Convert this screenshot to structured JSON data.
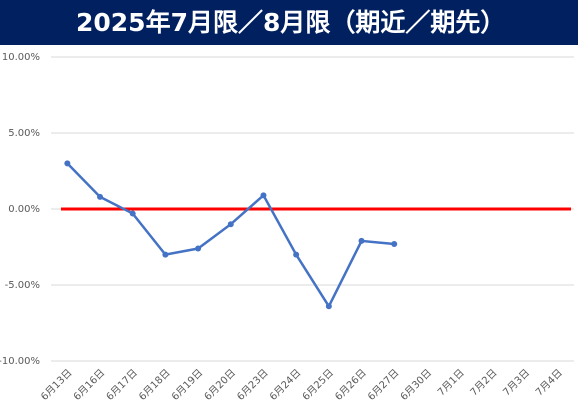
{
  "chart_data": {
    "type": "line",
    "title": "2025年7月限／8月限（期近／期先）",
    "categories": [
      "6月13日",
      "6月16日",
      "6月17日",
      "6月18日",
      "6月19日",
      "6月20日",
      "6月23日",
      "6月24日",
      "6月25日",
      "6月26日",
      "6月27日",
      "6月30日",
      "7月1日",
      "7月2日",
      "7月3日",
      "7月4日"
    ],
    "series": [
      {
        "name": "期近／期先",
        "color": "#4472c4",
        "values": [
          3.0,
          0.8,
          -0.3,
          -3.0,
          -2.6,
          -1.0,
          0.9,
          -3.0,
          -6.4,
          -2.1,
          -2.3,
          null,
          null,
          null,
          null,
          null
        ]
      }
    ],
    "ylim": [
      -10,
      10
    ],
    "yticks": [
      {
        "value": -10,
        "label": "-10.00%"
      },
      {
        "value": -5,
        "label": "-5.00%"
      },
      {
        "value": 0,
        "label": "0.00%"
      },
      {
        "value": 5,
        "label": "5.00%"
      },
      {
        "value": 10,
        "label": "10.00%"
      }
    ],
    "grid": true,
    "reference_line": {
      "value": 0,
      "color": "#ff0000"
    }
  }
}
